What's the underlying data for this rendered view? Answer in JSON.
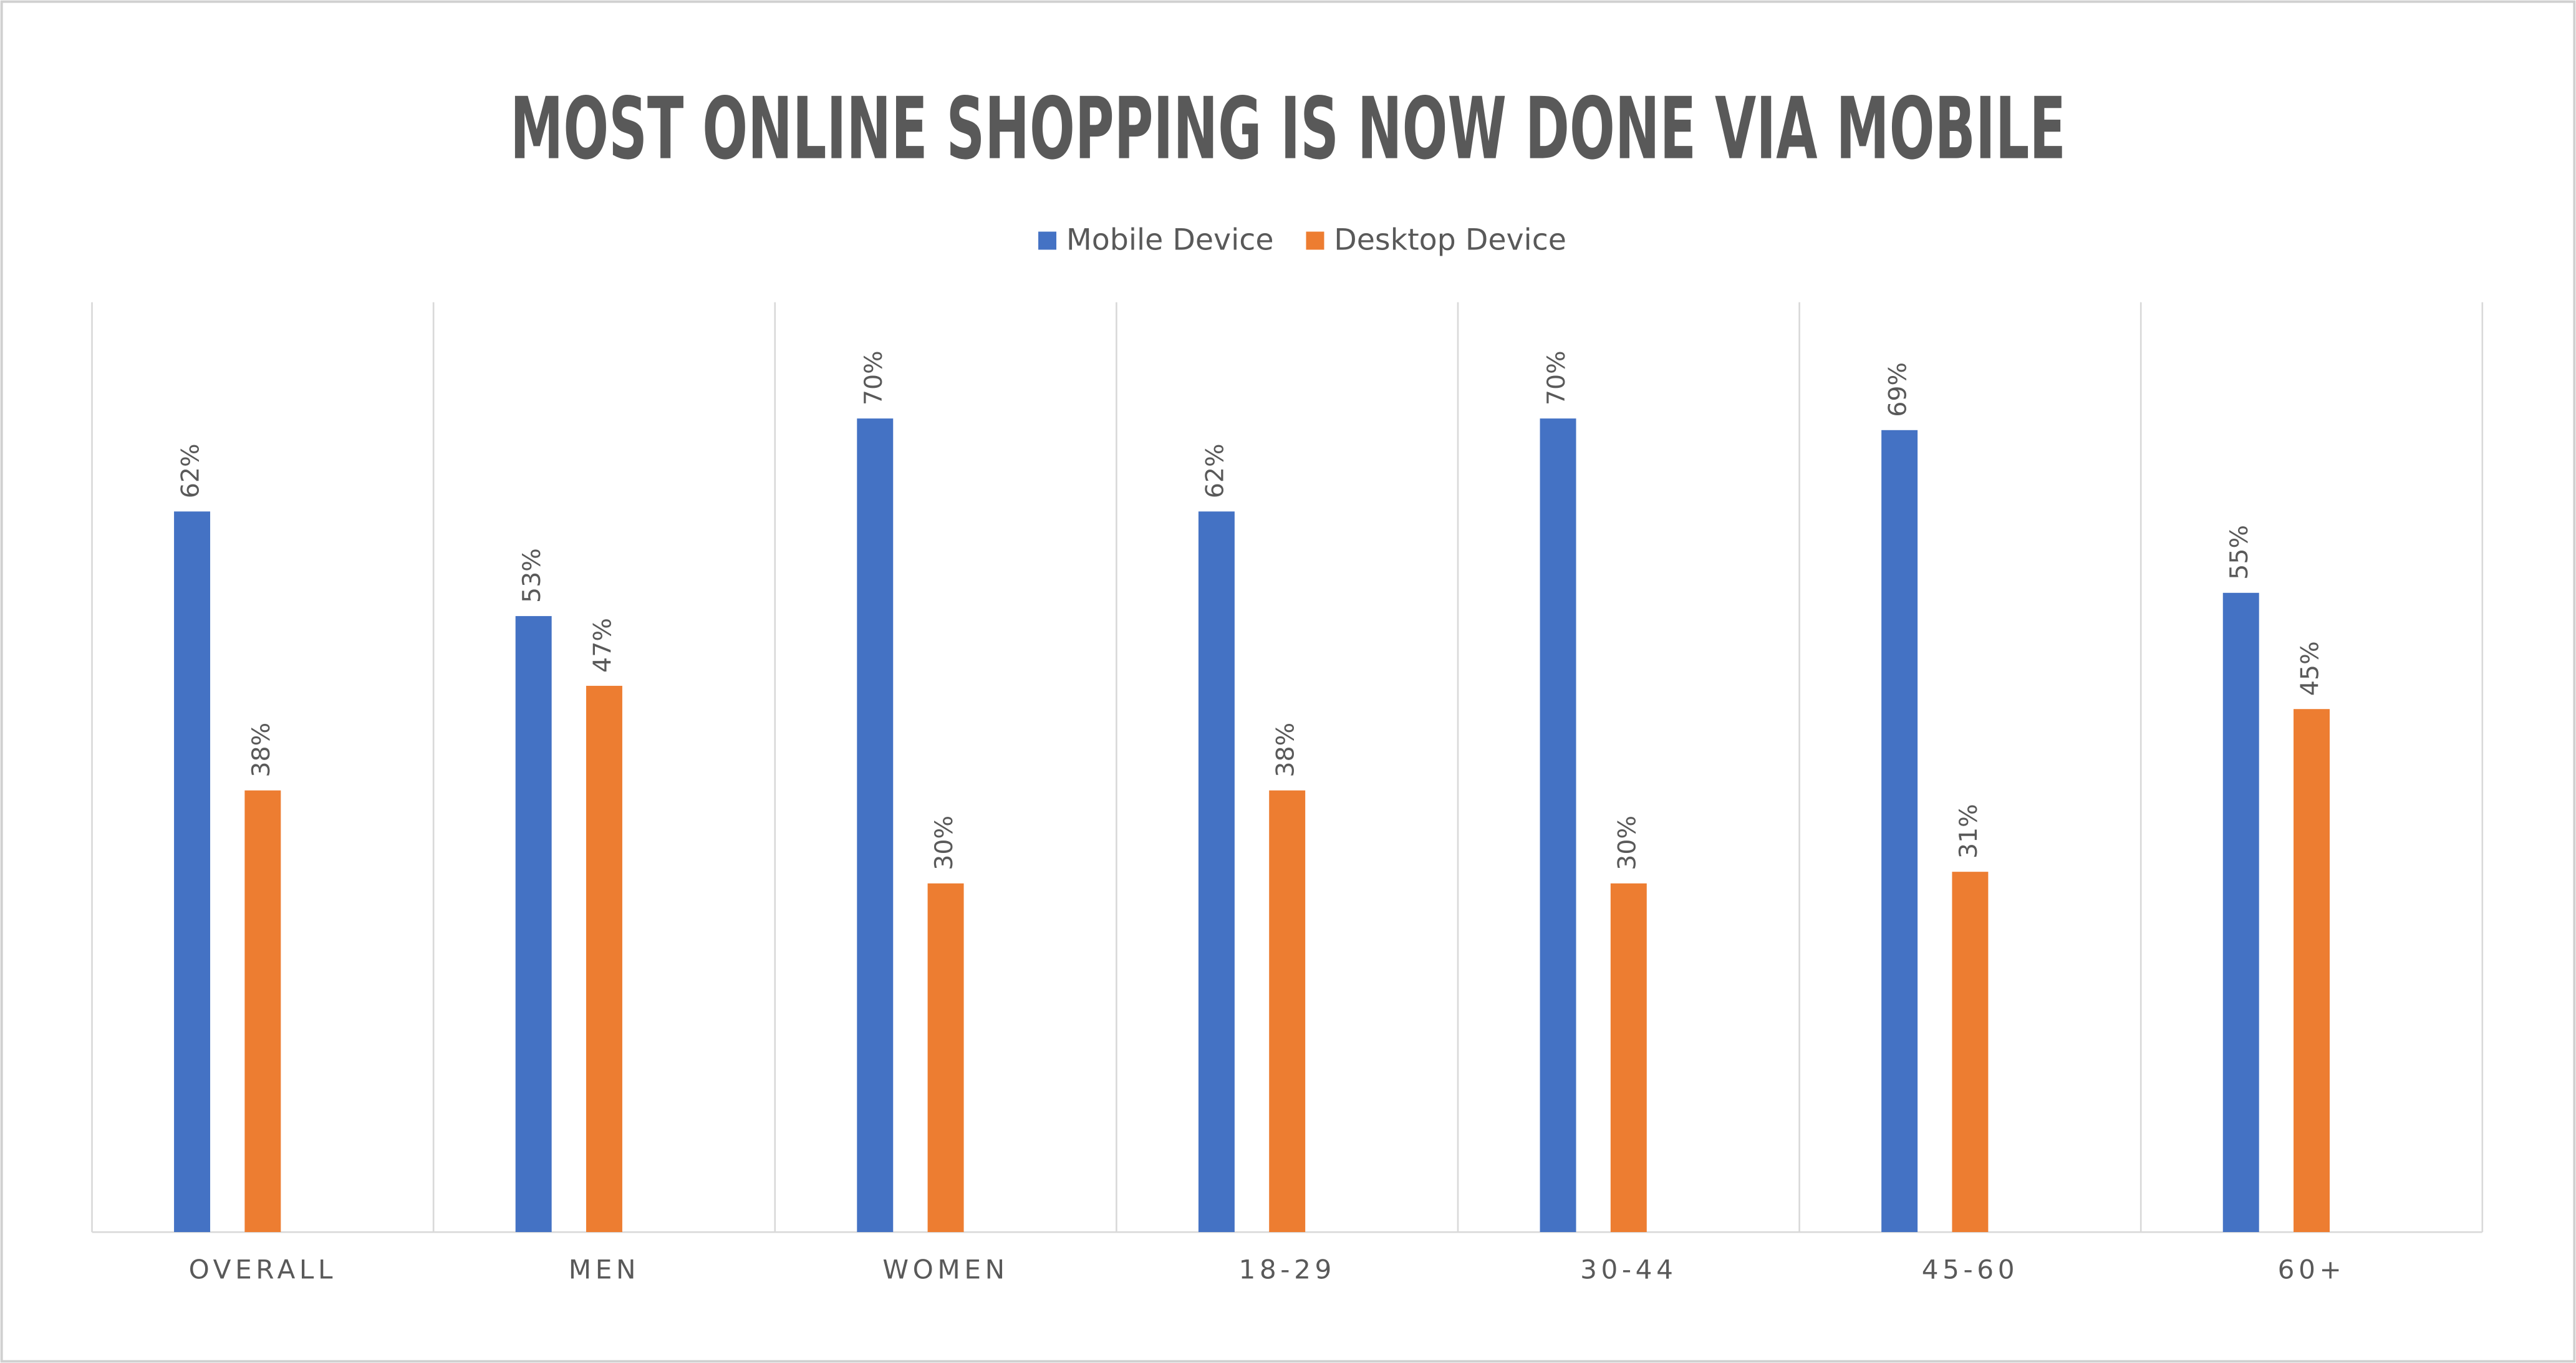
{
  "chart_data": {
    "type": "bar",
    "title": "MOST ONLINE SHOPPING IS NOW DONE VIA MOBILE",
    "categories": [
      "OVERALL",
      "MEN",
      "WOMEN",
      "18-29",
      "30-44",
      "45-60",
      "60+"
    ],
    "series": [
      {
        "name": "Mobile Device",
        "color": "#4472c4",
        "values": [
          62,
          53,
          70,
          62,
          70,
          69,
          55
        ],
        "value_labels": [
          "62%",
          "53%",
          "70%",
          "62%",
          "70%",
          "69%",
          "55%"
        ]
      },
      {
        "name": "Desktop Device",
        "color": "#ed7d31",
        "values": [
          38,
          47,
          30,
          38,
          30,
          31,
          45
        ],
        "value_labels": [
          "38%",
          "47%",
          "30%",
          "38%",
          "30%",
          "31%",
          "45%"
        ]
      }
    ],
    "ylim": [
      0,
      80
    ],
    "legend": "top"
  }
}
